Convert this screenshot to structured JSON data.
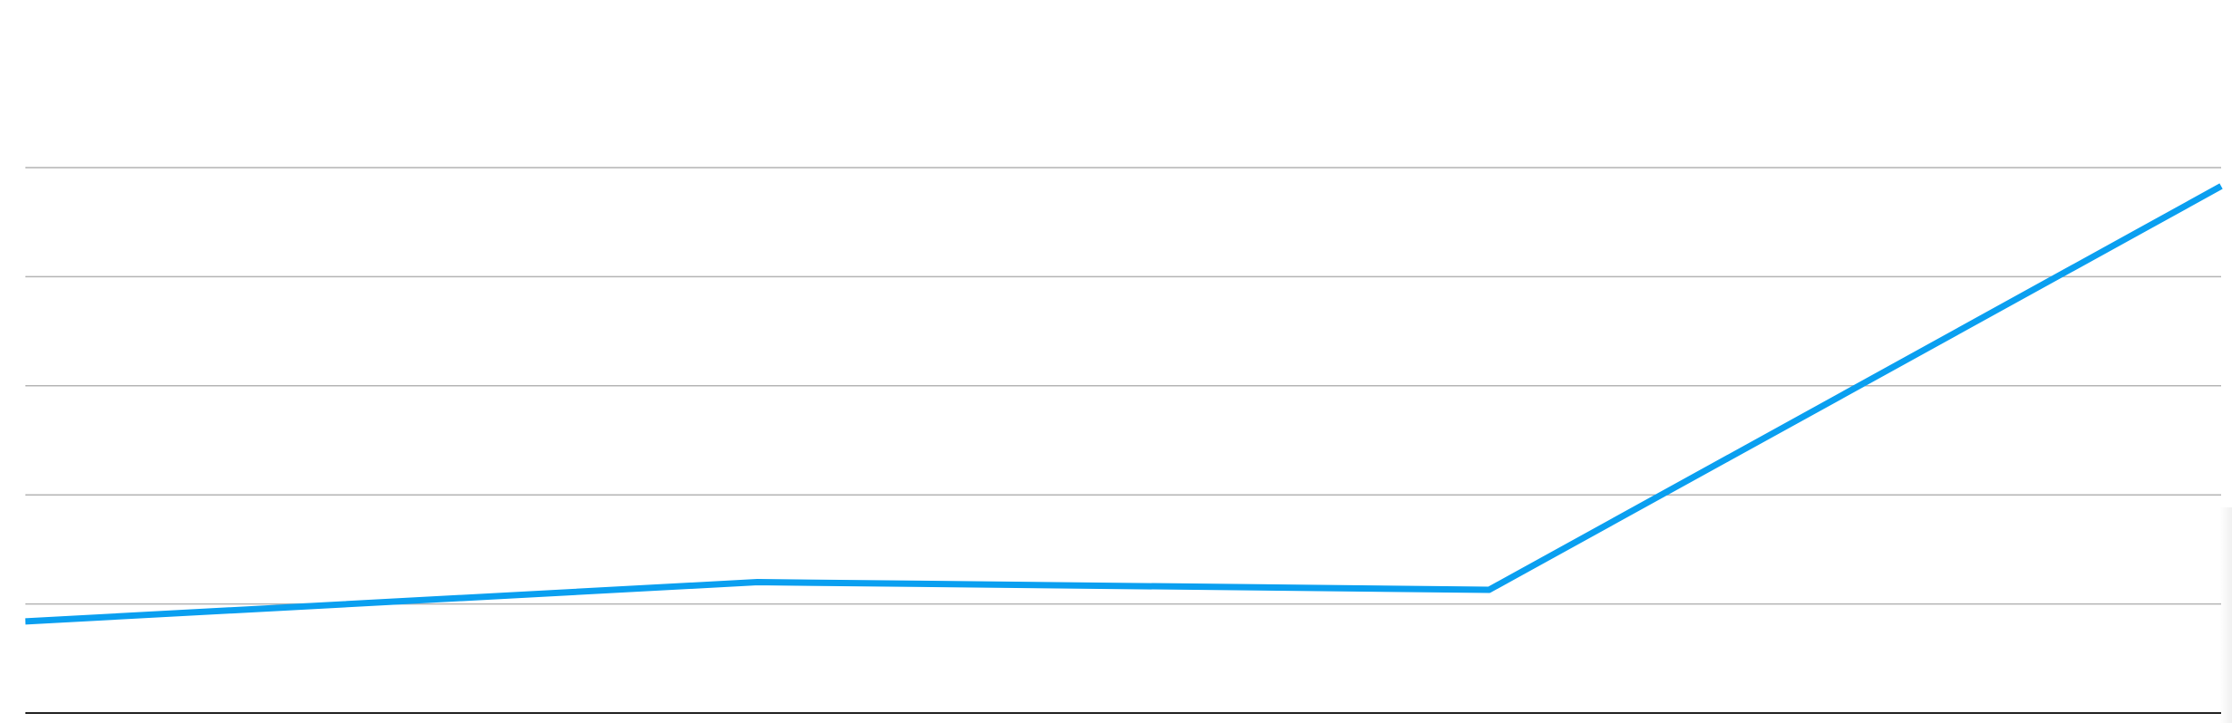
{
  "chart_data": {
    "type": "line",
    "title": "",
    "xlabel": "",
    "ylabel": "",
    "ylim": [
      0,
      5
    ],
    "grid": true,
    "x": [
      0,
      1,
      2,
      3
    ],
    "series": [
      {
        "values": [
          0.84,
          1.2,
          1.13,
          4.83
        ]
      }
    ]
  },
  "colors": {
    "series_line": "#0a9ff0",
    "gridline": "#b4b4b4",
    "baseline": "#222222",
    "background": "#ffffff"
  }
}
